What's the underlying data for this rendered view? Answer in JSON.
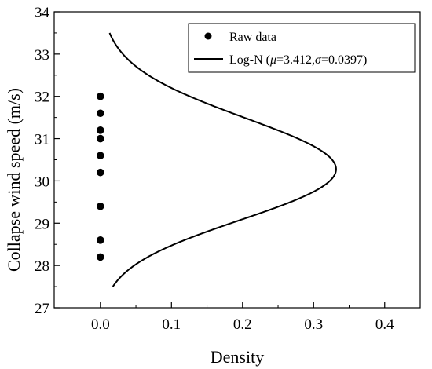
{
  "chart_data": {
    "type": "scatter",
    "title": "",
    "xlabel": "Density",
    "ylabel": "Collapse wind speed (m/s)",
    "xlim": [
      -0.065,
      0.45
    ],
    "ylim": [
      27,
      34
    ],
    "xticks": [
      0.0,
      0.1,
      0.2,
      0.3,
      0.4
    ],
    "xtick_labels": [
      "0.0",
      "0.1",
      "0.2",
      "0.3",
      "0.4"
    ],
    "yticks": [
      27,
      28,
      29,
      30,
      31,
      32,
      33,
      34
    ],
    "ytick_labels": [
      "27",
      "28",
      "29",
      "30",
      "31",
      "32",
      "33",
      "34"
    ],
    "grid": false,
    "legend_position": "top-right",
    "series": [
      {
        "name": "Raw data",
        "kind": "scatter",
        "color": "#000000",
        "points": [
          {
            "x": 0.0,
            "y": 28.2
          },
          {
            "x": 0.0,
            "y": 28.6
          },
          {
            "x": 0.0,
            "y": 29.4
          },
          {
            "x": 0.0,
            "y": 30.2
          },
          {
            "x": 0.0,
            "y": 30.6
          },
          {
            "x": 0.0,
            "y": 31.0
          },
          {
            "x": 0.0,
            "y": 31.2
          },
          {
            "x": 0.0,
            "y": 31.6
          },
          {
            "x": 0.0,
            "y": 32.0
          }
        ]
      },
      {
        "name": "Log-N (μ=3.412,σ=0.0397)",
        "kind": "line",
        "color": "#000000",
        "distribution": {
          "family": "lognormal",
          "mu": 3.412,
          "sigma": 0.0397
        },
        "y_range": [
          27.5,
          33.5
        ]
      }
    ],
    "legend": {
      "entries": [
        {
          "marker": "dot",
          "prefix": "Raw data",
          "mu_label": "",
          "mu_value": "",
          "sep": "",
          "sigma_label": "",
          "sigma_value": "",
          "suffix": ""
        },
        {
          "marker": "line",
          "prefix": "Log-N (",
          "mu_label": "μ",
          "mu_value": "=3.412,",
          "sep": "",
          "sigma_label": "σ",
          "sigma_value": "=0.0397",
          "suffix": ")"
        }
      ]
    }
  }
}
